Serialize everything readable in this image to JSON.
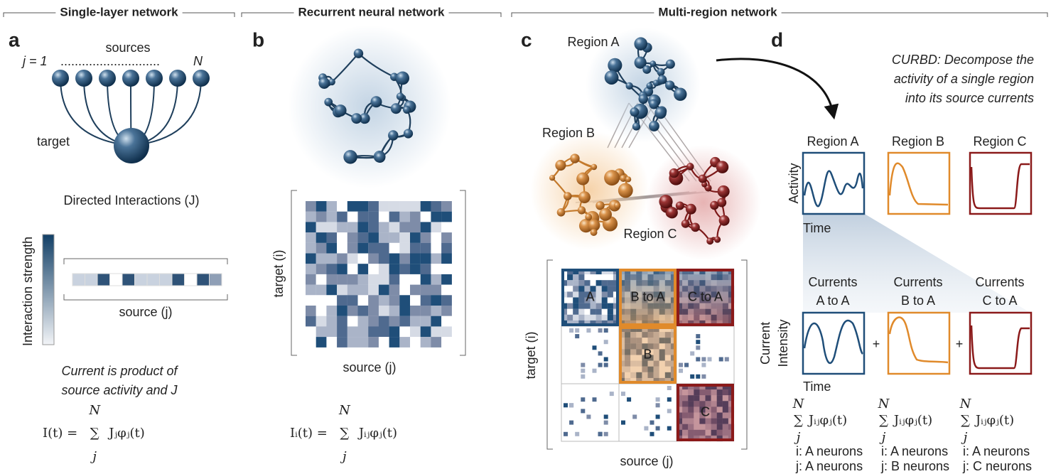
{
  "sections": [
    "Single-layer network",
    "Recurrent neural network",
    "Multi-region network"
  ],
  "panel_a": {
    "letter": "a",
    "sources_label": "sources",
    "j_start": "j = 1",
    "dots": "............................",
    "j_end": "N",
    "target_label": "target",
    "matrix_title": "Directed Interactions (J)",
    "colorbar_label": "Interaction strength",
    "x_label": "source (j)",
    "caption": [
      "Current is product of",
      "source activity and J"
    ],
    "equation": {
      "lhs": "I(t) =",
      "sum": "∑",
      "upper": "N",
      "lower": "j",
      "term": "Jⱼφⱼ(t)"
    }
  },
  "panel_b": {
    "letter": "b",
    "y_label": "target (i)",
    "x_label": "source (j)",
    "equation": {
      "lhs": "Iᵢ(t) =",
      "sum": "∑",
      "upper": "N",
      "lower": "j",
      "term": "Jᵢⱼφⱼ(t)"
    }
  },
  "panel_c": {
    "letter": "c",
    "regions": [
      "Region A",
      "Region B",
      "Region C"
    ],
    "blocks": [
      [
        "A",
        "B to A",
        "C to A"
      ],
      [
        "B"
      ],
      [
        "C"
      ]
    ],
    "y_label": "target (i)",
    "x_label": "source (j)"
  },
  "panel_d": {
    "letter": "d",
    "description": [
      "CURBD: Decompose the",
      "activity of a single region",
      "into its source currents"
    ],
    "regions": [
      "Region A",
      "Region B",
      "Region C"
    ],
    "activity_label": "Activity",
    "time_label": "Time",
    "currents": [
      [
        "Currents",
        "A to A"
      ],
      [
        "Currents",
        "B to A"
      ],
      [
        "Currents",
        "C to A"
      ]
    ],
    "current_label": [
      "Current",
      "Intensity"
    ],
    "time_label_2": "Time",
    "operators": [
      "+",
      "+"
    ],
    "equations": [
      {
        "sum": "∑",
        "upper": "N",
        "lower": "j",
        "term": "Jᵢⱼφⱼ(t)",
        "i_note": "i: A neurons",
        "j_note": "j: A neurons"
      },
      {
        "sum": "∑",
        "upper": "N",
        "lower": "j",
        "term": "Jᵢⱼφⱼ(t)",
        "i_note": "i: A neurons",
        "j_note": "j: B neurons"
      },
      {
        "sum": "∑",
        "upper": "N",
        "lower": "j",
        "term": "Jᵢⱼφⱼ(t)",
        "i_note": "i: A neurons",
        "j_note": "j: C neurons"
      }
    ]
  }
}
